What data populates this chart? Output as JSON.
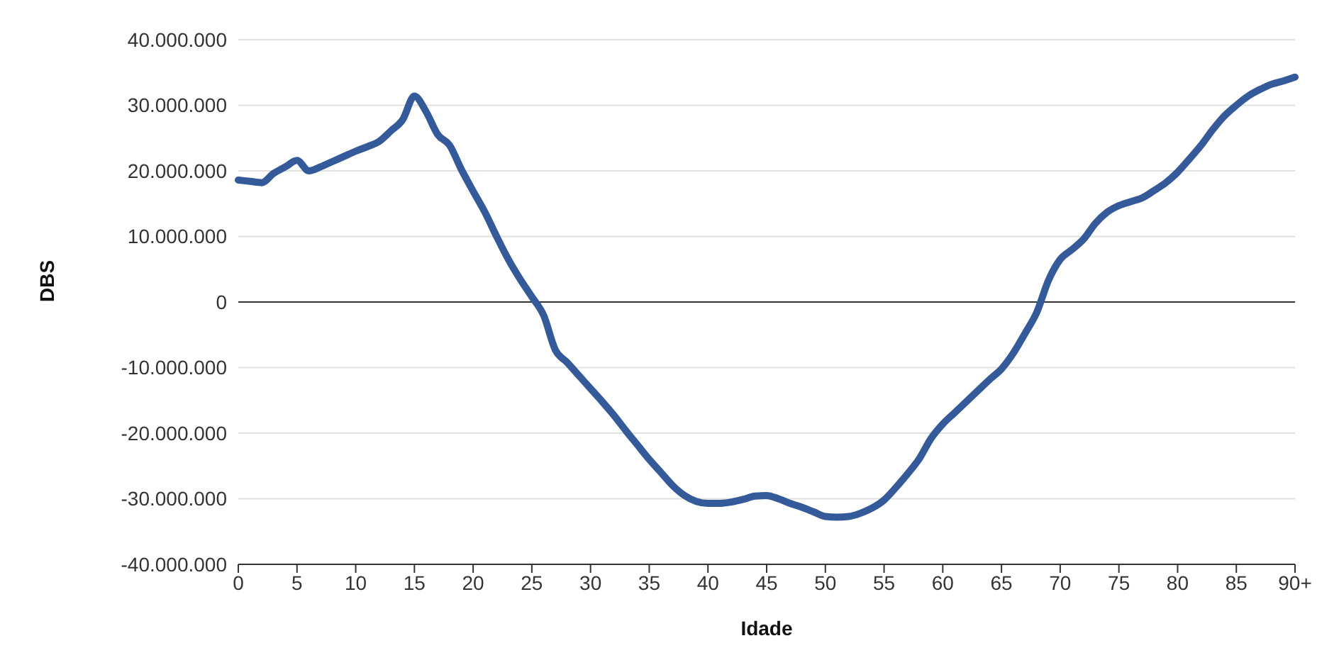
{
  "chart_data": {
    "type": "line",
    "xlabel": "Idade",
    "ylabel": "DBS",
    "categories": [
      "0",
      null,
      null,
      null,
      null,
      "5",
      null,
      null,
      null,
      null,
      "10",
      null,
      null,
      null,
      null,
      "15",
      null,
      null,
      null,
      null,
      "20",
      null,
      null,
      null,
      null,
      "25",
      null,
      null,
      null,
      null,
      "30",
      null,
      null,
      null,
      null,
      "35",
      null,
      null,
      null,
      null,
      "40",
      null,
      null,
      null,
      null,
      "45",
      null,
      null,
      null,
      null,
      "50",
      null,
      null,
      null,
      null,
      "55",
      null,
      null,
      null,
      null,
      "60",
      null,
      null,
      null,
      null,
      "65",
      null,
      null,
      null,
      null,
      "70",
      null,
      null,
      null,
      null,
      "75",
      null,
      null,
      null,
      null,
      "80",
      null,
      null,
      null,
      null,
      "85",
      null,
      null,
      null,
      null,
      "90+"
    ],
    "series": [
      {
        "color": "#345a9a",
        "values": [
          18600000,
          18400000,
          18200000,
          19600000,
          20600000,
          21600000,
          20000000,
          20600000,
          21400000,
          22200000,
          23000000,
          23700000,
          24500000,
          26100000,
          27800000,
          31400000,
          29000000,
          25500000,
          23900000,
          20200000,
          16900000,
          13700000,
          10000000,
          6500000,
          3500000,
          800000,
          -2000000,
          -7300000,
          -9200000,
          -11200000,
          -13200000,
          -15200000,
          -17300000,
          -19600000,
          -21800000,
          -24000000,
          -26000000,
          -28000000,
          -29500000,
          -30400000,
          -30700000,
          -30700000,
          -30500000,
          -30100000,
          -29600000,
          -29500000,
          -30000000,
          -30700000,
          -31300000,
          -32000000,
          -32700000,
          -32800000,
          -32700000,
          -32200000,
          -31400000,
          -30200000,
          -28300000,
          -26200000,
          -23900000,
          -20800000,
          -18600000,
          -16900000,
          -15200000,
          -13500000,
          -11800000,
          -10200000,
          -7800000,
          -4800000,
          -1600000,
          3300000,
          6500000,
          8000000,
          9600000,
          12000000,
          13700000,
          14700000,
          15300000,
          15900000,
          17000000,
          18200000,
          19800000,
          21800000,
          23900000,
          26300000,
          28400000,
          30000000,
          31400000,
          32400000,
          33200000,
          33700000,
          34300000
        ]
      }
    ],
    "ylim": [
      -40000000,
      40000000
    ],
    "yticks": [
      {
        "value": -40000000,
        "label": "-40.000.000"
      },
      {
        "value": -30000000,
        "label": "-30.000.000"
      },
      {
        "value": -20000000,
        "label": "-20.000.000"
      },
      {
        "value": -10000000,
        "label": "-10.000.000"
      },
      0,
      {
        "value": 10000000,
        "label": "10.000.000"
      },
      {
        "value": 20000000,
        "label": "20.000.000"
      },
      {
        "value": 30000000,
        "label": "30.000.000"
      },
      {
        "value": 40000000,
        "label": "40.000.000"
      }
    ],
    "grid": "y",
    "marker": "none",
    "line_style": "solid",
    "legend": false
  }
}
